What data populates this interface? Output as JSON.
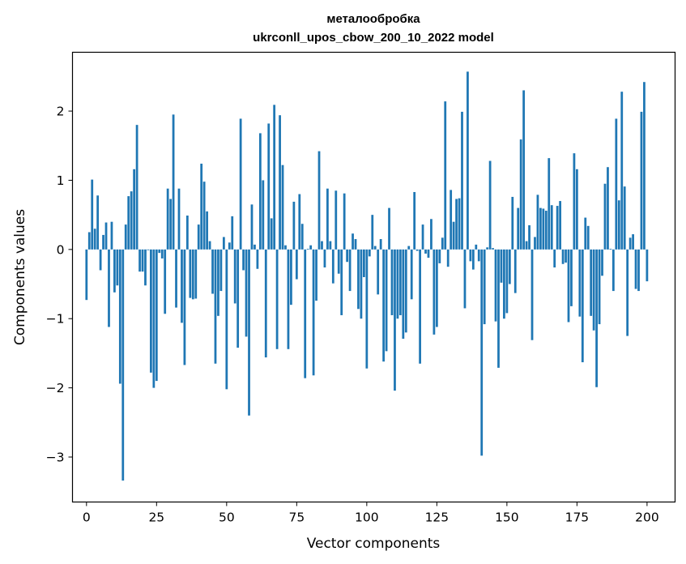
{
  "chart_data": {
    "type": "bar",
    "title_lines": [
      "металообробка",
      "ukrconll_upos_cbow_200_10_2022 model"
    ],
    "xlabel": "Vector components",
    "ylabel": "Components values",
    "xlim": [
      -5,
      210
    ],
    "ylim": [
      -3.65,
      2.85
    ],
    "x_ticks": [
      0,
      25,
      50,
      75,
      100,
      125,
      150,
      175,
      200
    ],
    "y_ticks": [
      -3,
      -2,
      -1,
      0,
      1,
      2
    ],
    "y_tick_labels": [
      "−3",
      "−2",
      "−1",
      "0",
      "1",
      "2"
    ],
    "grid": false,
    "bar_color": "#1f77b4",
    "values": [
      -0.73,
      0.25,
      1.01,
      0.3,
      0.78,
      -0.3,
      0.21,
      0.39,
      -1.12,
      0.4,
      -0.62,
      -0.52,
      -1.94,
      -3.34,
      0.36,
      0.77,
      0.84,
      1.16,
      1.8,
      -0.32,
      -0.32,
      -0.52,
      -0.01,
      -1.78,
      -2.0,
      -1.9,
      -0.05,
      -0.13,
      -0.93,
      0.88,
      0.73,
      1.95,
      -0.84,
      0.88,
      -1.06,
      -1.67,
      0.49,
      -0.7,
      -0.72,
      -0.71,
      0.36,
      1.24,
      0.98,
      0.55,
      0.12,
      -0.64,
      -1.65,
      -0.96,
      -0.6,
      0.18,
      -2.02,
      0.1,
      0.48,
      -0.78,
      -1.42,
      1.89,
      -0.3,
      -1.26,
      -2.4,
      0.65,
      0.07,
      -0.28,
      1.68,
      1.0,
      -1.56,
      1.82,
      0.45,
      2.09,
      -1.44,
      1.94,
      1.22,
      0.06,
      -1.44,
      -0.8,
      0.69,
      -0.43,
      0.8,
      0.37,
      -1.86,
      0.01,
      0.06,
      -1.82,
      -0.74,
      1.42,
      0.12,
      -0.26,
      0.88,
      0.12,
      -0.49,
      0.85,
      -0.35,
      -0.95,
      0.81,
      -0.18,
      -0.6,
      0.23,
      0.15,
      -0.86,
      -1.0,
      -0.4,
      -1.72,
      -0.1,
      0.5,
      0.05,
      -0.65,
      0.15,
      -1.62,
      -1.47,
      0.6,
      -0.95,
      -2.04,
      -1.0,
      -0.95,
      -1.29,
      -1.2,
      0.05,
      -0.72,
      0.83,
      -0.02,
      -1.65,
      0.36,
      -0.06,
      -0.12,
      0.44,
      -1.23,
      -1.12,
      -0.2,
      0.17,
      2.14,
      -0.25,
      0.86,
      0.4,
      0.73,
      0.74,
      1.99,
      -0.85,
      2.57,
      -0.17,
      -0.29,
      0.07,
      -0.17,
      -2.98,
      -1.08,
      0.03,
      1.28,
      0.02,
      -1.04,
      -1.71,
      -0.48,
      -1.0,
      -0.92,
      -0.5,
      0.76,
      -0.63,
      0.6,
      1.59,
      2.3,
      0.12,
      0.35,
      -1.31,
      0.18,
      0.79,
      0.6,
      0.59,
      0.56,
      1.32,
      0.64,
      -0.26,
      0.63,
      0.7,
      -0.21,
      -0.19,
      -1.05,
      -0.82,
      1.39,
      1.16,
      -0.97,
      -1.63,
      0.46,
      0.34,
      -0.96,
      -1.17,
      -1.99,
      -1.08,
      -0.38,
      0.95,
      1.19,
      0.01,
      -0.6,
      1.89,
      0.71,
      2.28,
      0.91,
      -1.25,
      0.17,
      0.22,
      -0.57,
      -0.6,
      1.99,
      2.42,
      -0.46
    ]
  }
}
